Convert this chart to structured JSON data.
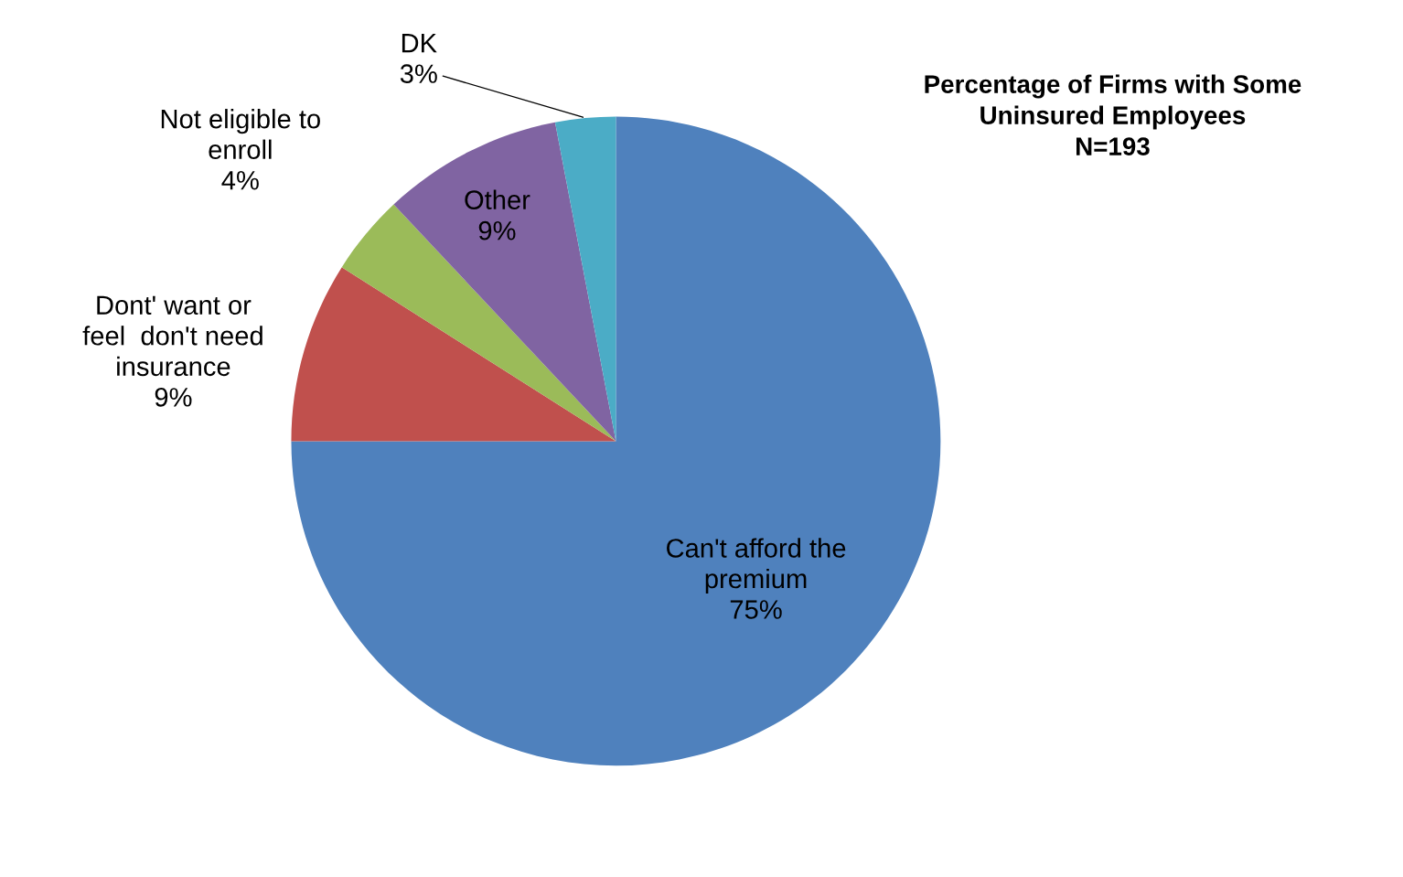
{
  "chart_data": {
    "type": "pie",
    "title": "Percentage of Firms with Some\nUninsured Employees\nN=193",
    "categories": [
      "Can't afford the\npremium",
      "Dont' want or\nfeel  don't need\ninsurance",
      "Not eligible to\nenroll",
      "Other",
      "DK"
    ],
    "values": [
      75,
      9,
      4,
      9,
      3
    ],
    "colors": [
      "#4f81bd",
      "#c0504d",
      "#9bbb59",
      "#8064a2",
      "#4bacc6"
    ],
    "value_labels": [
      "75%",
      "9%",
      "4%",
      "9%",
      "3%"
    ]
  }
}
